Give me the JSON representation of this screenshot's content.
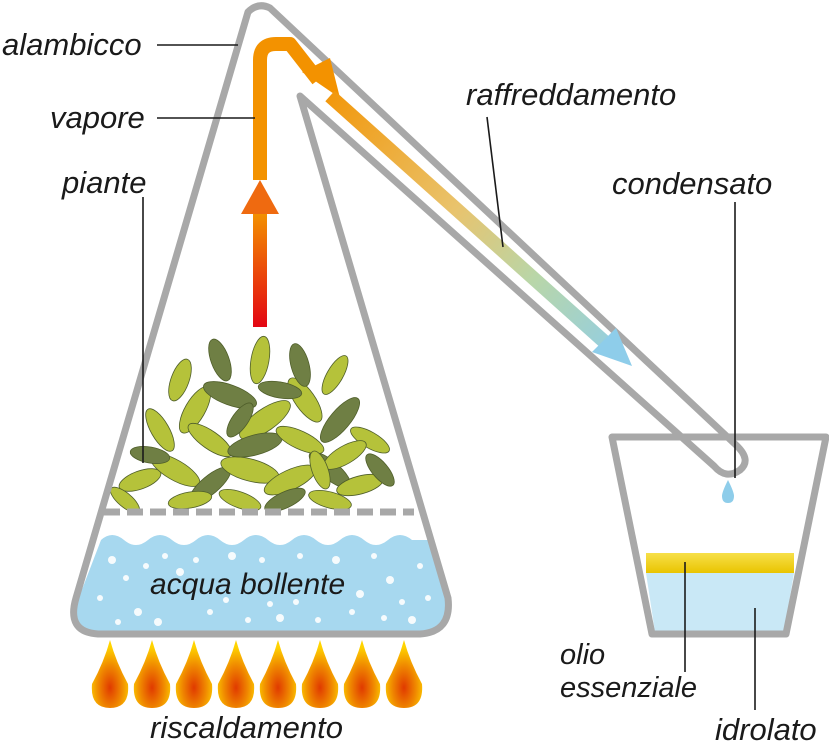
{
  "diagram": {
    "labels": {
      "alembic": "alambicco",
      "steam": "vapore",
      "plants": "piante",
      "cooling": "raffreddamento",
      "condensate": "condensato",
      "boiling_water": "acqua bollente",
      "heating": "riscaldamento",
      "essential_oil_line1": "olio",
      "essential_oil_line2": "essenziale",
      "hydrolate": "idrolato"
    },
    "colors": {
      "glass_outline": "#a8a8a8",
      "water": "#a7d8ef",
      "oil": "#f2d21b",
      "steam_hot": "#e30613",
      "steam_warm": "#f39200",
      "cooling_end": "#8ecdea",
      "flame_outer": "#ffd400",
      "flame_inner": "#e85d04",
      "leaves_light": "#b5c23a",
      "leaves_dark": "#6f7f44"
    },
    "flame_count": 8
  }
}
